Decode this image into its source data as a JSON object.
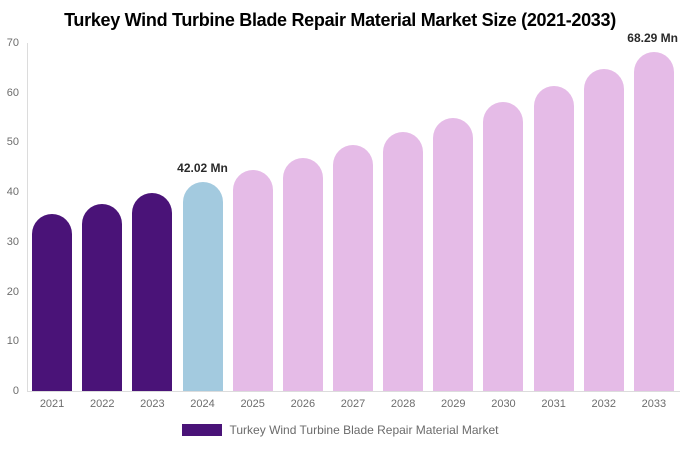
{
  "chart_data": {
    "type": "bar",
    "title": "Turkey Wind Turbine Blade Repair Material Market Size (2021-2033)",
    "categories": [
      "2021",
      "2022",
      "2023",
      "2024",
      "2025",
      "2026",
      "2027",
      "2028",
      "2029",
      "2030",
      "2031",
      "2032",
      "2033"
    ],
    "values": [
      35.7,
      37.7,
      39.8,
      42.02,
      44.4,
      46.8,
      49.4,
      52.1,
      55.0,
      58.1,
      61.3,
      64.7,
      68.29
    ],
    "unit": "Mn",
    "segments": [
      "historical",
      "historical",
      "historical",
      "current",
      "forecast",
      "forecast",
      "forecast",
      "forecast",
      "forecast",
      "forecast",
      "forecast",
      "forecast",
      "forecast"
    ],
    "segment_colors": {
      "historical": "#4A1378",
      "current": "#A3CADF",
      "forecast": "#E5BBE7"
    },
    "ylim": [
      0,
      70
    ],
    "yticks": [
      0,
      10,
      20,
      30,
      40,
      50,
      60,
      70
    ],
    "grid": false,
    "legend_position": "bottom",
    "data_labels": [
      {
        "category": "2024",
        "text": "42.02 Mn",
        "align": "center"
      },
      {
        "category": "2033",
        "text": "68.29 Mn",
        "align": "right-edge"
      }
    ]
  },
  "legend": {
    "label": "Turkey Wind Turbine Blade Repair Material Market",
    "swatch_color": "#4A1378"
  },
  "style_colors": {
    "background": "#ffffff",
    "axis_line": "#dcdcdc",
    "tick_text": "#6d6d6d",
    "title_text": "#000000",
    "data_label_text": "#2a2a2a"
  }
}
